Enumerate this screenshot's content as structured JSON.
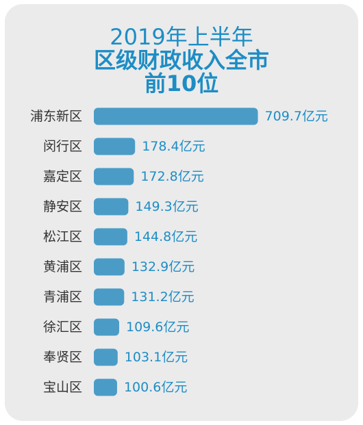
{
  "chart_data": {
    "type": "bar",
    "orientation": "horizontal",
    "title": "2019年上半年\n区级财政收入全市\n前10位",
    "title_lines": [
      "2019年上半年",
      "区级财政收入全市",
      "前10位"
    ],
    "categories": [
      "浦东新区",
      "闵行区",
      "嘉定区",
      "静安区",
      "松江区",
      "黄浦区",
      "青浦区",
      "徐汇区",
      "奉贤区",
      "宝山区"
    ],
    "values": [
      709.7,
      178.4,
      172.8,
      149.3,
      144.8,
      132.9,
      131.2,
      109.6,
      103.1,
      100.6
    ],
    "value_suffix": "亿元",
    "value_labels": [
      "709.7亿元",
      "178.4亿元",
      "172.8亿元",
      "149.3亿元",
      "144.8亿元",
      "132.9亿元",
      "131.2亿元",
      "109.6亿元",
      "103.1亿元",
      "100.6亿元"
    ],
    "bar_color": "#4a9cc7",
    "label_color": "#1d8dc4",
    "grid": false,
    "legend": "none"
  }
}
